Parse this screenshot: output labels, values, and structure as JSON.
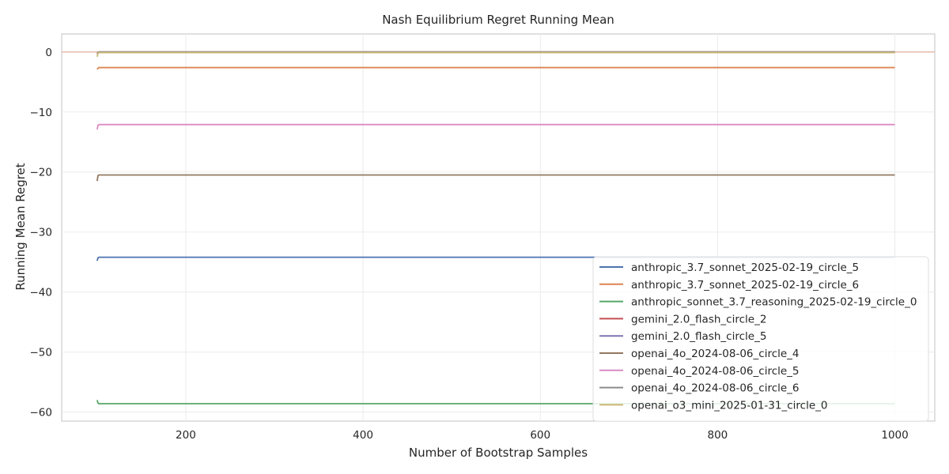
{
  "chart_data": {
    "type": "line",
    "title": "Nash Equilibrium Regret Running Mean",
    "xlabel": "Number of Bootstrap Samples",
    "ylabel": "Running Mean Regret",
    "xlim": [
      60,
      1045
    ],
    "ylim": [
      -61.5,
      3
    ],
    "xticks": [
      200,
      400,
      600,
      800,
      1000
    ],
    "yticks": [
      0,
      -10,
      -20,
      -30,
      -40,
      -50,
      -60
    ],
    "grid": true,
    "legend_position": "lower-right",
    "reference_line": {
      "y": 0,
      "color": "#e8b8a8"
    },
    "series": [
      {
        "name": "anthropic_3.7_sonnet_2025-02-19_circle_5",
        "color": "#4c72b0",
        "x": [
          100,
          101,
          102,
          1000
        ],
        "y": [
          -34.8,
          -34.3,
          -34.2,
          -34.2
        ]
      },
      {
        "name": "anthropic_3.7_sonnet_2025-02-19_circle_6",
        "color": "#dd8452",
        "x": [
          100,
          101,
          102,
          1000
        ],
        "y": [
          -2.9,
          -2.7,
          -2.6,
          -2.6
        ]
      },
      {
        "name": "anthropic_sonnet_3.7_reasoning_2025-02-19_circle_0",
        "color": "#55a868",
        "x": [
          100,
          101,
          102,
          1000
        ],
        "y": [
          -58.0,
          -58.5,
          -58.6,
          -58.6
        ]
      },
      {
        "name": "gemini_2.0_flash_circle_2",
        "color": "#c44e52",
        "x": [
          100,
          101,
          102,
          1000
        ],
        "y": [
          -0.3,
          -0.1,
          0.0,
          0.0
        ]
      },
      {
        "name": "gemini_2.0_flash_circle_5",
        "color": "#8172b3",
        "x": [
          100,
          101,
          102,
          1000
        ],
        "y": [
          -0.2,
          -0.1,
          0.0,
          0.0
        ]
      },
      {
        "name": "openai_4o_2024-08-06_circle_4",
        "color": "#937860",
        "x": [
          100,
          101,
          102,
          1000
        ],
        "y": [
          -21.5,
          -20.6,
          -20.5,
          -20.5
        ]
      },
      {
        "name": "openai_4o_2024-08-06_circle_5",
        "color": "#da8bc3",
        "x": [
          100,
          101,
          102,
          1000
        ],
        "y": [
          -12.9,
          -12.2,
          -12.1,
          -12.1
        ]
      },
      {
        "name": "openai_4o_2024-08-06_circle_6",
        "color": "#8c8c8c",
        "x": [
          100,
          101,
          102,
          1000
        ],
        "y": [
          -0.4,
          -0.1,
          0.0,
          0.0
        ]
      },
      {
        "name": "openai_o3_mini_2025-01-31_circle_0",
        "color": "#ccb974",
        "x": [
          100,
          101,
          102,
          1000
        ],
        "y": [
          -0.8,
          -0.2,
          -0.1,
          -0.1
        ]
      }
    ]
  }
}
